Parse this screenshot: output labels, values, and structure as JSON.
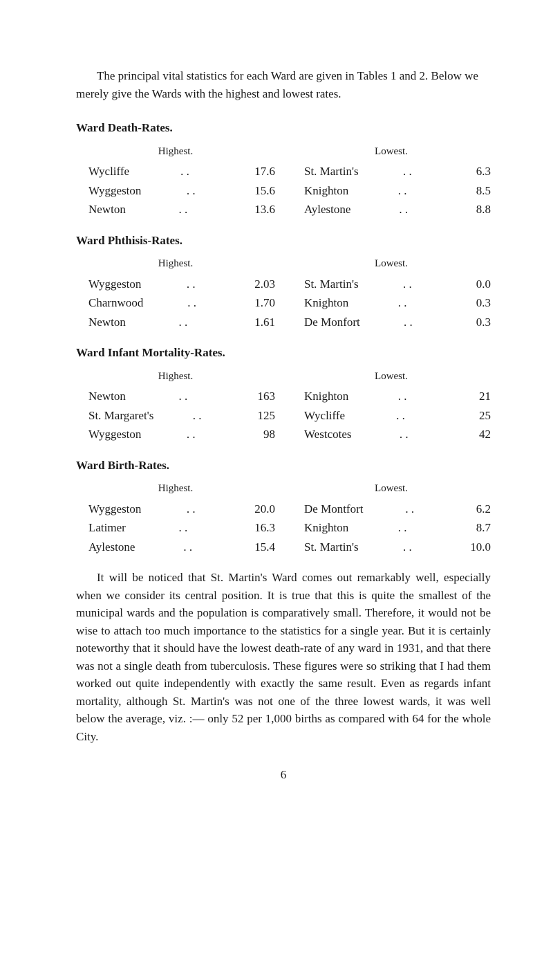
{
  "intro": "The principal vital statistics for each Ward are given in Tables 1 and 2. Below we merely give the Wards with the highest and lowest rates.",
  "sections": {
    "death": {
      "title": "Ward Death-Rates.",
      "highest_header": "Highest.",
      "lowest_header": "Lowest.",
      "highest": [
        {
          "label": "Wycliffe",
          "value": "17.6"
        },
        {
          "label": "Wyggeston",
          "value": "15.6"
        },
        {
          "label": "Newton",
          "value": "13.6"
        }
      ],
      "lowest": [
        {
          "label": "St. Martin's",
          "value": "6.3"
        },
        {
          "label": "Knighton",
          "value": "8.5"
        },
        {
          "label": "Aylestone",
          "value": "8.8"
        }
      ]
    },
    "phthisis": {
      "title": "Ward Phthisis-Rates.",
      "highest_header": "Highest.",
      "lowest_header": "Lowest.",
      "highest": [
        {
          "label": "Wyggeston",
          "value": "2.03"
        },
        {
          "label": "Charnwood",
          "value": "1.70"
        },
        {
          "label": "Newton",
          "value": "1.61"
        }
      ],
      "lowest": [
        {
          "label": "St. Martin's",
          "value": "0.0"
        },
        {
          "label": "Knighton",
          "value": "0.3"
        },
        {
          "label": "De Monfort",
          "value": "0.3"
        }
      ]
    },
    "infant": {
      "title": "Ward Infant Mortality-Rates.",
      "highest_header": "Highest.",
      "lowest_header": "Lowest.",
      "highest": [
        {
          "label": "Newton",
          "value": "163"
        },
        {
          "label": "St. Margaret's",
          "value": "125"
        },
        {
          "label": "Wyggeston",
          "value": "98"
        }
      ],
      "lowest": [
        {
          "label": "Knighton",
          "value": "21"
        },
        {
          "label": "Wycliffe",
          "value": "25"
        },
        {
          "label": "Westcotes",
          "value": "42"
        }
      ]
    },
    "birth": {
      "title": "Ward Birth-Rates.",
      "highest_header": "Highest.",
      "lowest_header": "Lowest.",
      "highest": [
        {
          "label": "Wyggeston",
          "value": "20.0"
        },
        {
          "label": "Latimer",
          "value": "16.3"
        },
        {
          "label": "Aylestone",
          "value": "15.4"
        }
      ],
      "lowest": [
        {
          "label": "De Montfort",
          "value": "6.2"
        },
        {
          "label": "Knighton",
          "value": "8.7"
        },
        {
          "label": "St. Martin's",
          "value": "10.0"
        }
      ]
    }
  },
  "body": "It will be noticed that St. Martin's Ward comes out remarkably well, especially when we consider its central position. It is true that this is quite the smallest of the municipal wards and the population is comparatively small. Therefore, it would not be wise to attach too much importance to the statistics for a single year. But it is certainly noteworthy that it should have the lowest death-rate of any ward in 1931, and that there was not a single death from tuberculosis. These figures were so striking that I had them worked out quite independently with exactly the same result. Even as regards infant mortality, although St. Martin's was not one of the three lowest wards, it was well below the average, viz. :— only 52 per 1,000 births as compared with 64 for the whole City.",
  "page_number": "6",
  "dots": ". ."
}
